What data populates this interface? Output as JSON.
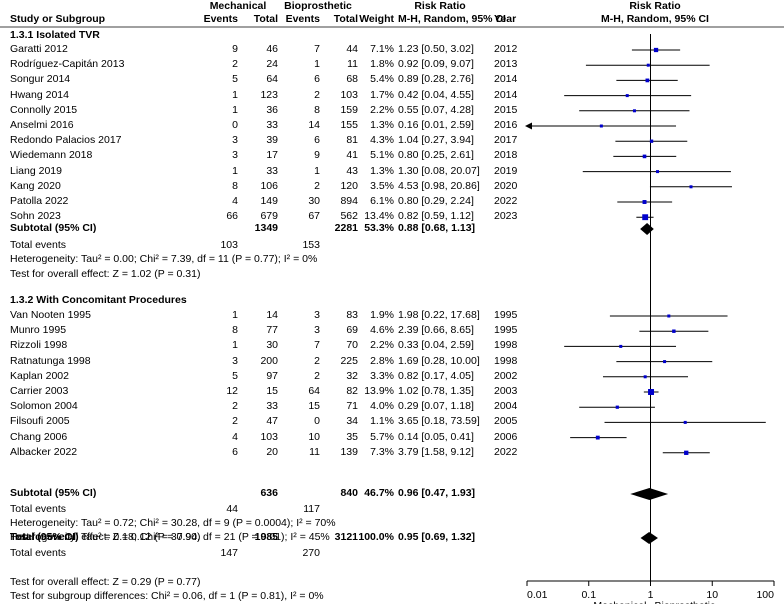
{
  "header": {
    "group1": "Mechanical",
    "group2": "Bioprosthetic",
    "col_rr": "Risk Ratio",
    "col_plot": "Risk Ratio",
    "study": "Study or Subgroup",
    "events1": "Events",
    "total1": "Total",
    "events2": "Events",
    "total2": "Total",
    "weight": "Weight",
    "method": "M-H, Random, 95% CI",
    "year": "Year",
    "method_plot": "M-H, Random, 95% CI"
  },
  "subgroups": [
    {
      "title": "1.3.1 Isolated TVR",
      "studies": [
        {
          "name": "Garatti 2012",
          "e1": "9",
          "t1": "46",
          "e2": "7",
          "t2": "44",
          "weight": "7.1%",
          "ci": "1.23 [0.50, 3.02]",
          "year": "2012"
        },
        {
          "name": "Rodríguez-Capitán 2013",
          "e1": "2",
          "t1": "24",
          "e2": "1",
          "t2": "11",
          "weight": "1.8%",
          "ci": "0.92 [0.09, 9.07]",
          "year": "2013"
        },
        {
          "name": "Songur 2014",
          "e1": "5",
          "t1": "64",
          "e2": "6",
          "t2": "68",
          "weight": "5.4%",
          "ci": "0.89 [0.28, 2.76]",
          "year": "2014"
        },
        {
          "name": "Hwang 2014",
          "e1": "1",
          "t1": "123",
          "e2": "2",
          "t2": "103",
          "weight": "1.7%",
          "ci": "0.42 [0.04, 4.55]",
          "year": "2014"
        },
        {
          "name": "Connolly 2015",
          "e1": "1",
          "t1": "36",
          "e2": "8",
          "t2": "159",
          "weight": "2.2%",
          "ci": "0.55 [0.07, 4.28]",
          "year": "2015"
        },
        {
          "name": "Anselmi 2016",
          "e1": "0",
          "t1": "33",
          "e2": "14",
          "t2": "155",
          "weight": "1.3%",
          "ci": "0.16 [0.01, 2.59]",
          "year": "2016"
        },
        {
          "name": "Redondo Palacios 2017",
          "e1": "3",
          "t1": "39",
          "e2": "6",
          "t2": "81",
          "weight": "4.3%",
          "ci": "1.04 [0.27, 3.94]",
          "year": "2017"
        },
        {
          "name": "Wiedemann 2018",
          "e1": "3",
          "t1": "17",
          "e2": "9",
          "t2": "41",
          "weight": "5.1%",
          "ci": "0.80 [0.25, 2.61]",
          "year": "2018"
        },
        {
          "name": "Liang 2019",
          "e1": "1",
          "t1": "33",
          "e2": "1",
          "t2": "43",
          "weight": "1.3%",
          "ci": "1.30 [0.08, 20.07]",
          "year": "2019"
        },
        {
          "name": "Kang 2020",
          "e1": "8",
          "t1": "106",
          "e2": "2",
          "t2": "120",
          "weight": "3.5%",
          "ci": "4.53 [0.98, 20.86]",
          "year": "2020"
        },
        {
          "name": "Patolla 2022",
          "e1": "4",
          "t1": "149",
          "e2": "30",
          "t2": "894",
          "weight": "6.1%",
          "ci": "0.80 [0.29, 2.24]",
          "year": "2022"
        },
        {
          "name": "Sohn 2023",
          "e1": "66",
          "t1": "679",
          "e2": "67",
          "t2": "562",
          "weight": "13.4%",
          "ci": "0.82 [0.59, 1.12]",
          "year": "2023"
        }
      ],
      "subtotal": {
        "label": "Subtotal (95% CI)",
        "t1": "1349",
        "t2": "2281",
        "weight": "53.3%",
        "ci": "0.88 [0.68, 1.13]"
      },
      "total_events": {
        "label": "Total events",
        "e1": "103",
        "e2": "153"
      },
      "heterogeneity": "Heterogeneity: Tau² = 0.00; Chi² = 7.39, df = 11 (P = 0.77); I² = 0%",
      "overall": "Test for overall effect: Z = 1.02 (P = 0.31)"
    },
    {
      "title": "1.3.2 With Concomitant Procedures",
      "studies": [
        {
          "name": "Van Nooten 1995",
          "e1": "1",
          "t1": "14",
          "e2": "3",
          "t2": "83",
          "weight": "1.9%",
          "ci": "1.98 [0.22, 17.68]",
          "year": "1995"
        },
        {
          "name": "Munro 1995",
          "e1": "8",
          "t1": "77",
          "e2": "3",
          "t2": "69",
          "weight": "4.6%",
          "ci": "2.39 [0.66, 8.65]",
          "year": "1995"
        },
        {
          "name": "Rizzoli 1998",
          "e1": "1",
          "t1": "30",
          "e2": "7",
          "t2": "70",
          "weight": "2.2%",
          "ci": "0.33 [0.04, 2.59]",
          "year": "1998"
        },
        {
          "name": "Ratnatunga 1998",
          "e1": "3",
          "t1": "200",
          "e2": "2",
          "t2": "225",
          "weight": "2.8%",
          "ci": "1.69 [0.28, 10.00]",
          "year": "1998"
        },
        {
          "name": "Kaplan 2002",
          "e1": "5",
          "t1": "97",
          "e2": "2",
          "t2": "32",
          "weight": "3.3%",
          "ci": "0.82 [0.17, 4.05]",
          "year": "2002"
        },
        {
          "name": "Carrier 2003",
          "e1": "12",
          "t1": "15",
          "e2": "64",
          "t2": "82",
          "weight": "13.9%",
          "ci": "1.02 [0.78, 1.35]",
          "year": "2003"
        },
        {
          "name": "Solomon 2004",
          "e1": "2",
          "t1": "33",
          "e2": "15",
          "t2": "71",
          "weight": "4.0%",
          "ci": "0.29 [0.07, 1.18]",
          "year": "2004"
        },
        {
          "name": "Filsoufi 2005",
          "e1": "2",
          "t1": "47",
          "e2": "0",
          "t2": "34",
          "weight": "1.1%",
          "ci": "3.65 [0.18, 73.59]",
          "year": "2005"
        },
        {
          "name": "Chang 2006",
          "e1": "4",
          "t1": "103",
          "e2": "10",
          "t2": "35",
          "weight": "5.7%",
          "ci": "0.14 [0.05, 0.41]",
          "year": "2006"
        },
        {
          "name": "Albacker 2022",
          "e1": "6",
          "t1": "20",
          "e2": "11",
          "t2": "139",
          "weight": "7.3%",
          "ci": "3.79 [1.58, 9.12]",
          "year": "2022"
        }
      ],
      "subtotal": {
        "label": "Subtotal (95% CI)",
        "t1": "636",
        "t2": "840",
        "weight": "46.7%",
        "ci": "0.96 [0.47, 1.93]"
      },
      "total_events": {
        "label": "Total events",
        "e1": "44",
        "e2": "117"
      },
      "heterogeneity": "Heterogeneity: Tau² = 0.72; Chi² = 30.28, df = 9 (P = 0.0004); I² = 70%",
      "overall": "Test for overall effect: Z = 0.12 (P = 0.90)"
    }
  ],
  "total": {
    "label": "Total (95% CI)",
    "t1": "1985",
    "t2": "3121",
    "weight": "100.0%",
    "ci": "0.95 [0.69, 1.32]",
    "events_label": "Total events",
    "e1": "147",
    "e2": "270",
    "heterogeneity": "Heterogeneity: Tau² = 0.18; Chi² = 37.94, df = 21 (P = 0.01); I² = 45%",
    "overall": "Test for overall effect: Z = 0.29 (P = 0.77)",
    "subgroup_diff": "Test for subgroup differences: Chi² = 0.06, df = 1 (P = 0.81), I² = 0%"
  },
  "axis": {
    "ticks": [
      0.01,
      0.1,
      1,
      10,
      100
    ],
    "tick_labels": [
      "0.01",
      "0.1",
      "1",
      "10",
      "100"
    ],
    "favours_left": "Mechanical",
    "favours_right": "Bioprosthetic"
  },
  "colors": {
    "square": "#0000cc",
    "line": "#000000",
    "diamond": "#000000"
  },
  "chart_data": {
    "type": "forest",
    "title": "Risk Ratio (M-H, Random, 95% CI)",
    "scale": "log",
    "xlim": [
      0.01,
      100
    ],
    "series": [
      {
        "name": "Garatti 2012",
        "rr": 1.23,
        "lo": 0.5,
        "hi": 3.02,
        "weight": 7.1
      },
      {
        "name": "Rodríguez-Capitán 2013",
        "rr": 0.92,
        "lo": 0.09,
        "hi": 9.07,
        "weight": 1.8
      },
      {
        "name": "Songur 2014",
        "rr": 0.89,
        "lo": 0.28,
        "hi": 2.76,
        "weight": 5.4
      },
      {
        "name": "Hwang 2014",
        "rr": 0.42,
        "lo": 0.04,
        "hi": 4.55,
        "weight": 1.7
      },
      {
        "name": "Connolly 2015",
        "rr": 0.55,
        "lo": 0.07,
        "hi": 4.28,
        "weight": 2.2
      },
      {
        "name": "Anselmi 2016",
        "rr": 0.16,
        "lo": 0.01,
        "hi": 2.59,
        "weight": 1.3
      },
      {
        "name": "Redondo Palacios 2017",
        "rr": 1.04,
        "lo": 0.27,
        "hi": 3.94,
        "weight": 4.3
      },
      {
        "name": "Wiedemann 2018",
        "rr": 0.8,
        "lo": 0.25,
        "hi": 2.61,
        "weight": 5.1
      },
      {
        "name": "Liang 2019",
        "rr": 1.3,
        "lo": 0.08,
        "hi": 20.07,
        "weight": 1.3
      },
      {
        "name": "Kang 2020",
        "rr": 4.53,
        "lo": 0.98,
        "hi": 20.86,
        "weight": 3.5
      },
      {
        "name": "Patolla 2022",
        "rr": 0.8,
        "lo": 0.29,
        "hi": 2.24,
        "weight": 6.1
      },
      {
        "name": "Sohn 2023",
        "rr": 0.82,
        "lo": 0.59,
        "hi": 1.12,
        "weight": 13.4
      },
      {
        "name": "Subtotal 1.3.1",
        "rr": 0.88,
        "lo": 0.68,
        "hi": 1.13,
        "diamond": true
      },
      {
        "name": "Van Nooten 1995",
        "rr": 1.98,
        "lo": 0.22,
        "hi": 17.68,
        "weight": 1.9
      },
      {
        "name": "Munro 1995",
        "rr": 2.39,
        "lo": 0.66,
        "hi": 8.65,
        "weight": 4.6
      },
      {
        "name": "Rizzoli 1998",
        "rr": 0.33,
        "lo": 0.04,
        "hi": 2.59,
        "weight": 2.2
      },
      {
        "name": "Ratnatunga 1998",
        "rr": 1.69,
        "lo": 0.28,
        "hi": 10.0,
        "weight": 2.8
      },
      {
        "name": "Kaplan 2002",
        "rr": 0.82,
        "lo": 0.17,
        "hi": 4.05,
        "weight": 3.3
      },
      {
        "name": "Carrier 2003",
        "rr": 1.02,
        "lo": 0.78,
        "hi": 1.35,
        "weight": 13.9
      },
      {
        "name": "Solomon 2004",
        "rr": 0.29,
        "lo": 0.07,
        "hi": 1.18,
        "weight": 4.0
      },
      {
        "name": "Filsoufi 2005",
        "rr": 3.65,
        "lo": 0.18,
        "hi": 73.59,
        "weight": 1.1
      },
      {
        "name": "Chang 2006",
        "rr": 0.14,
        "lo": 0.05,
        "hi": 0.41,
        "weight": 5.7
      },
      {
        "name": "Albacker 2022",
        "rr": 3.79,
        "lo": 1.58,
        "hi": 9.12,
        "weight": 7.3
      },
      {
        "name": "Subtotal 1.3.2",
        "rr": 0.96,
        "lo": 0.47,
        "hi": 1.93,
        "diamond": true
      },
      {
        "name": "Total",
        "rr": 0.95,
        "lo": 0.69,
        "hi": 1.32,
        "diamond": true
      }
    ]
  }
}
